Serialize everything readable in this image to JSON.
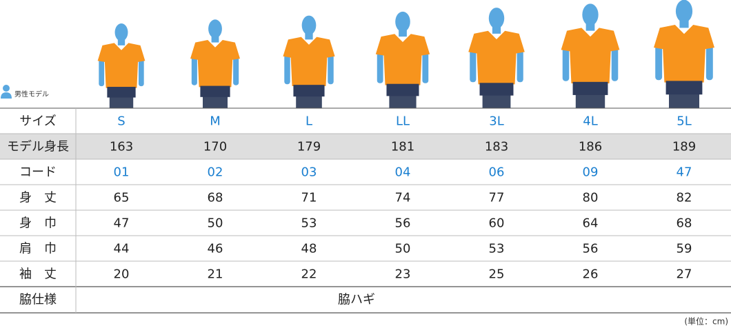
{
  "legend": "男性モデル",
  "table": {
    "rows": [
      {
        "label": "サイズ",
        "cells": [
          "S",
          "M",
          "L",
          "LL",
          "3L",
          "4L",
          "5L"
        ]
      },
      {
        "label": "モデル身長",
        "cells": [
          "163",
          "170",
          "179",
          "181",
          "183",
          "186",
          "189"
        ]
      },
      {
        "label": "コード",
        "cells": [
          "01",
          "02",
          "03",
          "04",
          "06",
          "09",
          "47"
        ]
      },
      {
        "label": "身　丈",
        "cells": [
          "65",
          "68",
          "71",
          "74",
          "77",
          "80",
          "82"
        ]
      },
      {
        "label": "身　巾",
        "cells": [
          "47",
          "50",
          "53",
          "56",
          "60",
          "64",
          "68"
        ]
      },
      {
        "label": "肩　巾",
        "cells": [
          "44",
          "46",
          "48",
          "50",
          "53",
          "56",
          "59"
        ]
      },
      {
        "label": "袖　丈",
        "cells": [
          "20",
          "21",
          "22",
          "23",
          "25",
          "26",
          "27"
        ]
      }
    ],
    "footer_row": {
      "label": "脇仕様",
      "value": "脇ハギ"
    }
  },
  "unit_note": "(単位：cm)"
}
